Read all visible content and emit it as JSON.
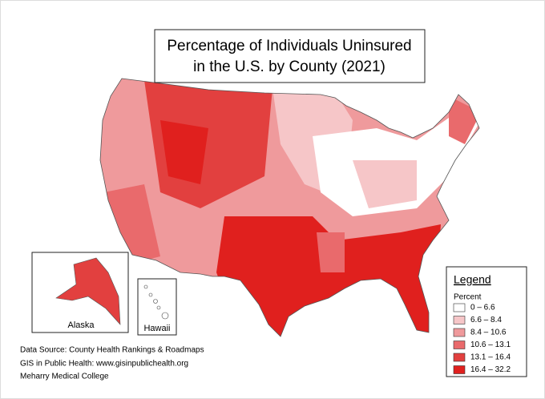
{
  "title": [
    "Percentage of Individuals Uninsured",
    "in the U.S. by County (2021)"
  ],
  "insets": {
    "alaska": "Alaska",
    "hawaii": "Hawaii"
  },
  "legend": {
    "title": "Legend",
    "subtitle": "Percent",
    "items": [
      {
        "label": "0 – 6.6",
        "color": "#ffffff"
      },
      {
        "label": "6.6 – 8.4",
        "color": "#f6c6c8"
      },
      {
        "label": "8.4 – 10.6",
        "color": "#ef9a9c"
      },
      {
        "label": "10.6 – 13.1",
        "color": "#e96a6c"
      },
      {
        "label": "13.1 – 16.4",
        "color": "#e2403f"
      },
      {
        "label": "16.4 – 32.2",
        "color": "#e0201e"
      }
    ]
  },
  "source": [
    "Data Source: County Health Rankings & Roadmaps",
    "GIS in Public Health: www.gisinpublichealth.org",
    "Meharry Medical College"
  ]
}
